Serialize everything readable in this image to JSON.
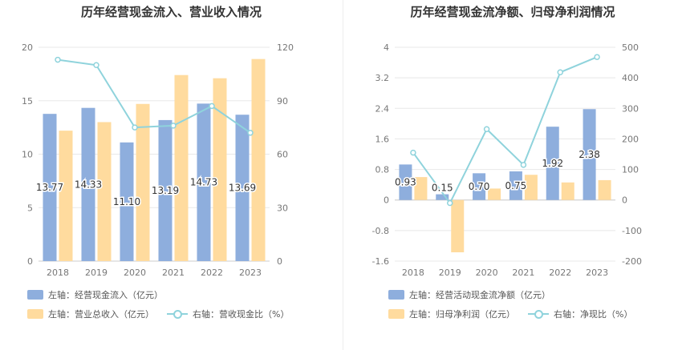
{
  "colors": {
    "bar_primary": "#8eaedd",
    "bar_secondary": "#ffdb9e",
    "line": "#8fd3dc",
    "grid": "#e8e8e8",
    "axis_text": "#777777",
    "label_text": "#333333"
  },
  "chart_data": [
    {
      "type": "bar",
      "title": "历年经营现金流入、营业收入情况",
      "categories": [
        "2018",
        "2019",
        "2020",
        "2021",
        "2022",
        "2023"
      ],
      "series": [
        {
          "name": "左轴：经营现金流入（亿元）",
          "axis": "left",
          "kind": "bar",
          "values": [
            13.77,
            14.33,
            11.1,
            13.19,
            14.73,
            13.69
          ],
          "data_labels": [
            "13.77",
            "14.33",
            "11.10",
            "13.19",
            "14.73",
            "13.69"
          ]
        },
        {
          "name": "左轴：营业总收入（亿元）",
          "axis": "left",
          "kind": "bar",
          "values": [
            12.2,
            13.0,
            14.7,
            17.4,
            17.1,
            18.9
          ]
        },
        {
          "name": "右轴：营收现金比（%）",
          "axis": "right",
          "kind": "line",
          "values": [
            113,
            110,
            75,
            76,
            87,
            72
          ]
        }
      ],
      "y_left": {
        "ylim": [
          0,
          20
        ],
        "ticks": [
          "0",
          "5",
          "10",
          "15",
          "20"
        ]
      },
      "y_right": {
        "ylim": [
          0,
          120
        ],
        "ticks": [
          "0",
          "30",
          "60",
          "90",
          "120"
        ]
      },
      "grid": true,
      "legend_position": "bottom-left"
    },
    {
      "type": "bar",
      "title": "历年经营现金流净额、归母净利润情况",
      "categories": [
        "2018",
        "2019",
        "2020",
        "2021",
        "2022",
        "2023"
      ],
      "series": [
        {
          "name": "左轴：经营活动现金流净额（亿元）",
          "axis": "left",
          "kind": "bar",
          "values": [
            0.93,
            0.15,
            0.7,
            0.75,
            1.92,
            2.38
          ],
          "data_labels": [
            "0.93",
            "0.15",
            "0.70",
            "0.75",
            "1.92",
            "2.38"
          ]
        },
        {
          "name": "左轴：归母净利润（亿元）",
          "axis": "left",
          "kind": "bar",
          "values": [
            0.6,
            -1.37,
            0.3,
            0.66,
            0.46,
            0.52
          ]
        },
        {
          "name": "右轴：净现比（%）",
          "axis": "right",
          "kind": "line",
          "values": [
            155,
            -10,
            232,
            115,
            418,
            468
          ]
        }
      ],
      "y_left": {
        "ylim": [
          -1.6,
          4
        ],
        "ticks": [
          "-1.6",
          "-0.8",
          "0",
          "0.8",
          "1.6",
          "2.4",
          "3.2",
          "4"
        ]
      },
      "y_right": {
        "ylim": [
          -200,
          500
        ],
        "ticks": [
          "-200",
          "-100",
          "0",
          "100",
          "200",
          "300",
          "400",
          "500"
        ]
      },
      "grid": true,
      "legend_position": "bottom-left"
    }
  ]
}
